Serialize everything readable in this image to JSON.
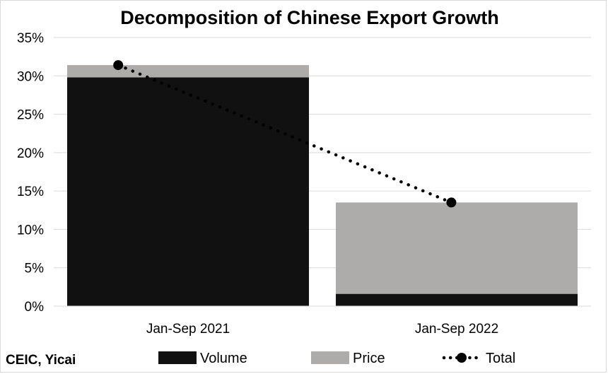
{
  "chart_data": {
    "type": "bar",
    "stacked": true,
    "title": "Decomposition of Chinese Export Growth",
    "categories": [
      "Jan-Sep 2021",
      "Jan-Sep 2022"
    ],
    "series": [
      {
        "name": "Volume",
        "kind": "bar",
        "color": "#111111",
        "values": [
          29.8,
          1.6
        ]
      },
      {
        "name": "Price",
        "kind": "bar",
        "color": "#aeabab",
        "values": [
          1.6,
          11.9
        ]
      },
      {
        "name": "Total",
        "kind": "line",
        "style": "dotted",
        "marker": "circle",
        "color": "#000000",
        "values": [
          31.4,
          13.5
        ]
      }
    ],
    "ylim": [
      0,
      35
    ],
    "yticks": [
      0,
      5,
      10,
      15,
      20,
      25,
      30,
      35
    ],
    "y_tick_format": "percent",
    "grid": true,
    "legend_position": "bottom",
    "source": "CEIC, Yicai"
  }
}
